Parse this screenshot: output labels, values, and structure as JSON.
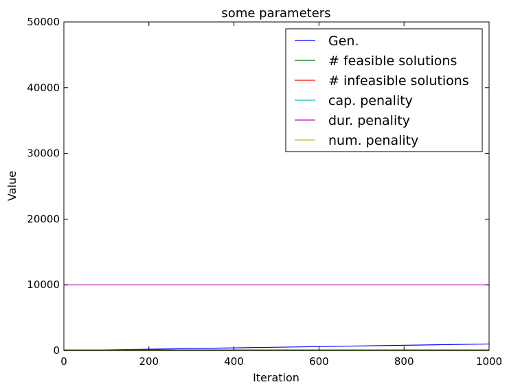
{
  "chart_data": {
    "type": "line",
    "title": "some parameters",
    "xlabel": "Iteration",
    "ylabel": "Value",
    "xlim": [
      0,
      1000
    ],
    "ylim": [
      0,
      50000
    ],
    "xticks": [
      0,
      200,
      400,
      600,
      800,
      1000
    ],
    "yticks": [
      0,
      10000,
      20000,
      30000,
      40000,
      50000
    ],
    "grid": false,
    "legend_position": "top-right",
    "series": [
      {
        "name": "Gen.",
        "color": "#0000ff",
        "x": [
          0,
          1000
        ],
        "y": [
          0,
          1000
        ]
      },
      {
        "name": "# feasible solutions",
        "color": "#008000",
        "x": [
          0,
          1000
        ],
        "y": [
          100,
          100
        ]
      },
      {
        "name": "# infeasible solutions",
        "color": "#ff0000",
        "x": [
          0,
          1000
        ],
        "y": [
          0,
          0
        ]
      },
      {
        "name": "cap. penality",
        "color": "#00bfbf",
        "x": [
          0,
          1000
        ],
        "y": [
          0,
          0
        ]
      },
      {
        "name": "dur. penality",
        "color": "#bf00bf",
        "x": [
          0,
          1000
        ],
        "y": [
          10000,
          10000
        ]
      },
      {
        "name": "num. penality",
        "color": "#bfbf00",
        "x": [
          0,
          1000
        ],
        "y": [
          0,
          0
        ]
      }
    ]
  }
}
